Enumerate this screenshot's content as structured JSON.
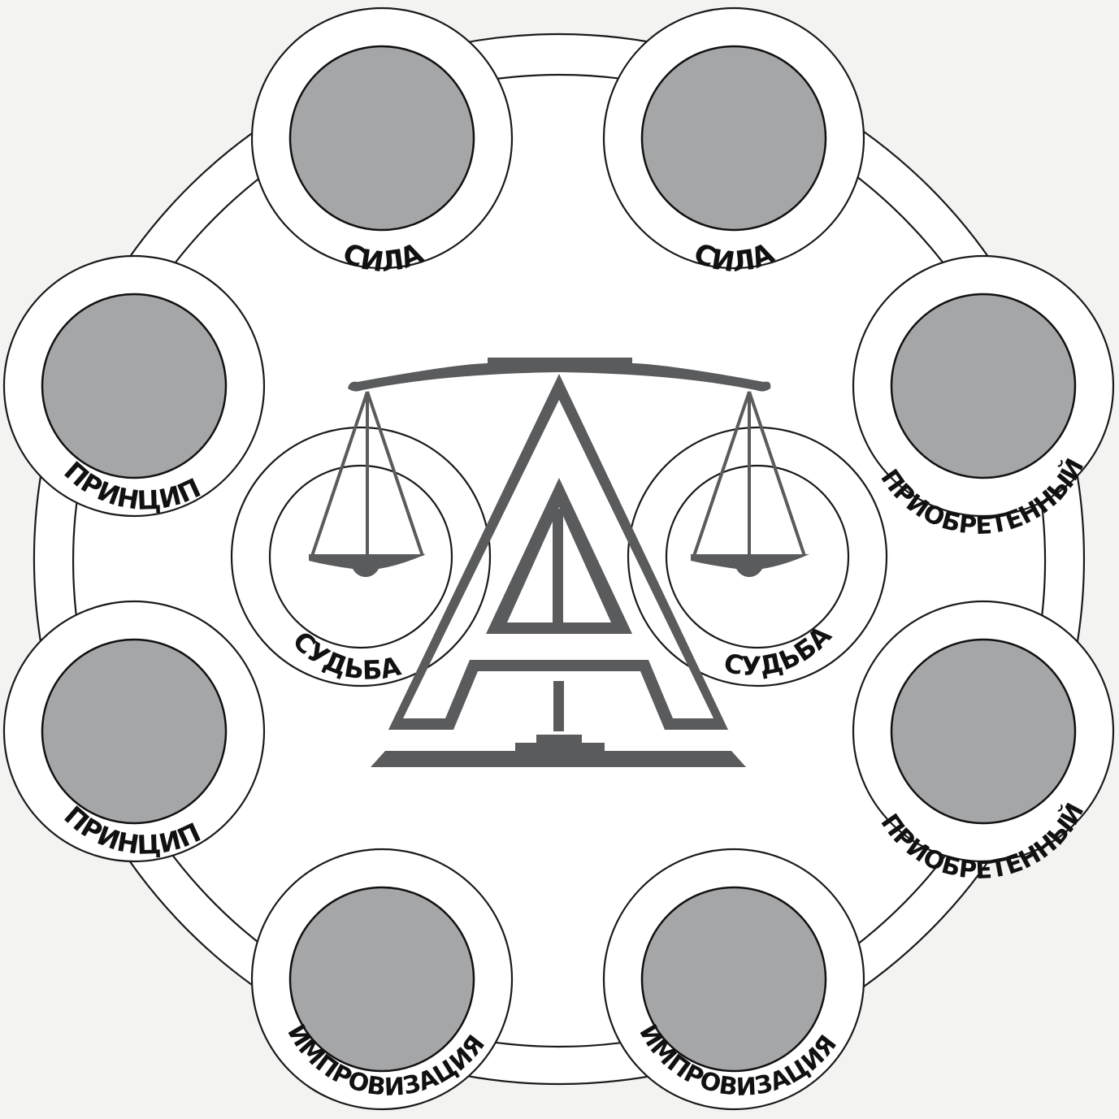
{
  "board": {
    "colors": {
      "background": "#f3f3f1",
      "ring": "#ffffff",
      "outline": "#1a1a1a",
      "slot": "#a5a6a8",
      "emblem": "#5a5b5d",
      "text": "#111111"
    }
  },
  "slots": [
    {
      "label": "СИЛА",
      "kind": "outer"
    },
    {
      "label": "СИЛА",
      "kind": "outer"
    },
    {
      "label": "ПРИОБРЕТЕННЫЙ",
      "kind": "outer"
    },
    {
      "label": "ПРИОБРЕТЕННЫЙ",
      "kind": "outer"
    },
    {
      "label": "ИМПРОВИЗАЦИЯ",
      "kind": "outer"
    },
    {
      "label": "ИМПРОВИЗАЦИЯ",
      "kind": "outer"
    },
    {
      "label": "ПРИНЦИП",
      "kind": "outer"
    },
    {
      "label": "ПРИНЦИП",
      "kind": "outer"
    }
  ],
  "fate_slots": [
    {
      "label": "СУДЬБА"
    },
    {
      "label": "СУДЬБА"
    }
  ],
  "emblem": {
    "icon": "scales-letter-a-icon"
  }
}
